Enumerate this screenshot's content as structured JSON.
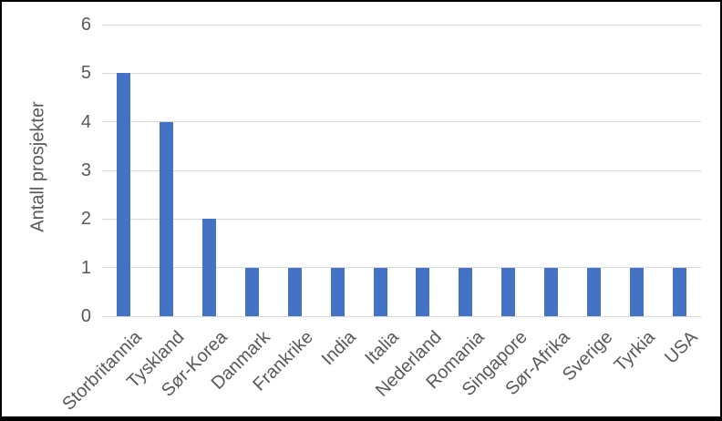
{
  "chart_data": {
    "type": "bar",
    "categories": [
      "Storbritannia",
      "Tyskland",
      "Sør-Korea",
      "Danmark",
      "Frankrike",
      "India",
      "Italia",
      "Nederland",
      "Romania",
      "Singapore",
      "Sør-Afrika",
      "Sverige",
      "Tyrkia",
      "USA"
    ],
    "values": [
      5,
      4,
      2,
      1,
      1,
      1,
      1,
      1,
      1,
      1,
      1,
      1,
      1,
      1
    ],
    "title": "",
    "xlabel": "",
    "ylabel": "Antall prosjekter",
    "ylim": [
      0,
      6
    ],
    "yticks": [
      0,
      1,
      2,
      3,
      4,
      5,
      6
    ],
    "grid": true,
    "legend": false,
    "bar_color": "#4472C4",
    "gridline_color": "#D9D9D9",
    "text_color": "#595959",
    "frame_border_color": "#000000"
  }
}
